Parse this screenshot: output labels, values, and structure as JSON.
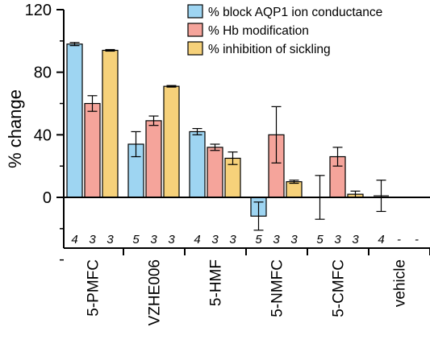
{
  "chart_data": {
    "type": "bar",
    "ylabel": "% change",
    "ylim": [
      -40,
      120
    ],
    "yticks": [
      "0",
      "40",
      "80",
      "120"
    ],
    "zero_line": true,
    "categories": [
      "5-PMFC",
      "VZHE006",
      "5-HMF",
      "5-NMFC",
      "5-CMFC",
      "vehicle"
    ],
    "legend_position": "top-right",
    "series": [
      {
        "name": "% block AQP1 ion conductance",
        "color": "#9ed5f2",
        "values": [
          98,
          34,
          42,
          -12,
          0,
          1
        ],
        "errors": [
          1,
          8,
          2,
          9,
          14,
          10
        ],
        "visible_bar": [
          true,
          true,
          true,
          true,
          false,
          false
        ]
      },
      {
        "name": "% Hb modification",
        "color": "#f5a49b",
        "values": [
          60,
          49,
          32,
          40,
          26,
          null
        ],
        "errors": [
          5,
          3,
          2,
          18,
          6,
          null
        ]
      },
      {
        "name": "% inhibition of sickling",
        "color": "#f6d17a",
        "values": [
          94,
          71,
          25,
          10,
          2,
          null
        ],
        "errors": [
          0.5,
          0.5,
          4,
          1,
          2,
          null
        ]
      }
    ],
    "n_labels": [
      [
        "4",
        "3",
        "3"
      ],
      [
        "5",
        "3",
        "3"
      ],
      [
        "4",
        "3",
        "3"
      ],
      [
        "5",
        "3",
        "3"
      ],
      [
        "5",
        "3",
        "3"
      ],
      [
        "4",
        "-",
        "-"
      ]
    ]
  }
}
